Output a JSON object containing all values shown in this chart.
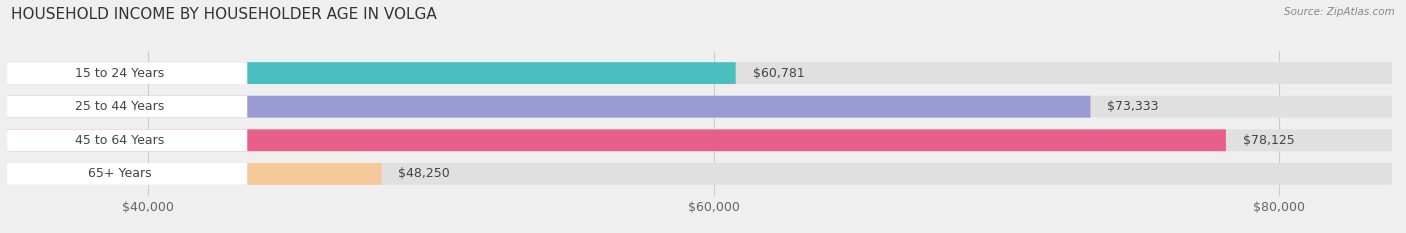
{
  "title": "HOUSEHOLD INCOME BY HOUSEHOLDER AGE IN VOLGA",
  "source": "Source: ZipAtlas.com",
  "categories": [
    "15 to 24 Years",
    "25 to 44 Years",
    "45 to 64 Years",
    "65+ Years"
  ],
  "values": [
    60781,
    73333,
    78125,
    48250
  ],
  "bar_colors": [
    "#4BBFBF",
    "#9B9BD4",
    "#E8608A",
    "#F5C99A"
  ],
  "bar_labels": [
    "$60,781",
    "$73,333",
    "$78,125",
    "$48,250"
  ],
  "xlim_min": 35000,
  "xlim_max": 84000,
  "xticks": [
    40000,
    60000,
    80000
  ],
  "xtick_labels": [
    "$40,000",
    "$60,000",
    "$80,000"
  ],
  "background_color": "#efefef",
  "bar_bg_color": "#e0e0e0",
  "title_fontsize": 11,
  "label_fontsize": 9,
  "value_fontsize": 9,
  "bar_height": 0.65
}
